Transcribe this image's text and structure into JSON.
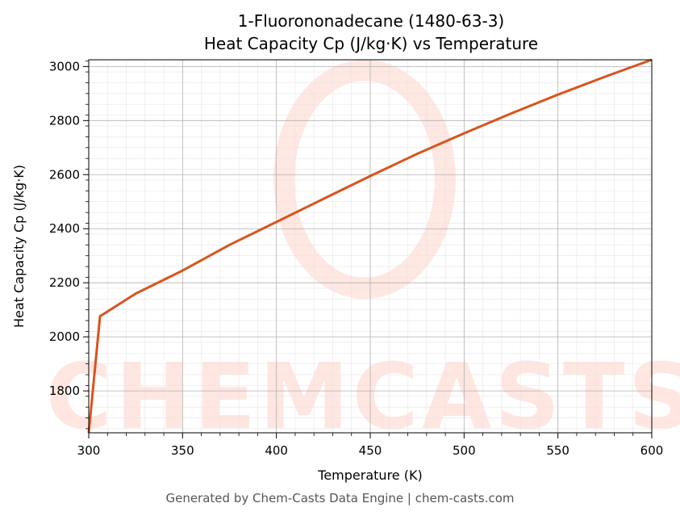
{
  "chart_data": {
    "type": "line",
    "title": "1-Fluorononadecane (1480-63-3)",
    "subtitle": "Heat Capacity Cp (J/kg·K) vs Temperature",
    "xlabel": "Temperature (K)",
    "ylabel": "Heat Capacity Cp (J/kg·K)",
    "xlim": [
      300,
      600
    ],
    "ylim": [
      1645,
      3025
    ],
    "x_ticks": [
      300,
      350,
      400,
      450,
      500,
      550,
      600
    ],
    "y_ticks": [
      1800,
      2000,
      2200,
      2400,
      2600,
      2800,
      3000
    ],
    "grid": true,
    "legend": "none",
    "watermark": "CHEMCASTS",
    "series": [
      {
        "color": "#d9541e",
        "x": [
          300,
          306,
          325,
          350,
          375,
          400,
          425,
          450,
          475,
          500,
          525,
          550,
          575,
          600
        ],
        "y": [
          1645,
          2076,
          2160,
          2245,
          2340,
          2425,
          2510,
          2595,
          2677,
          2753,
          2826,
          2896,
          2962,
          3025
        ]
      }
    ]
  },
  "footer": "Generated by Chem-Casts Data Engine | chem-casts.com"
}
